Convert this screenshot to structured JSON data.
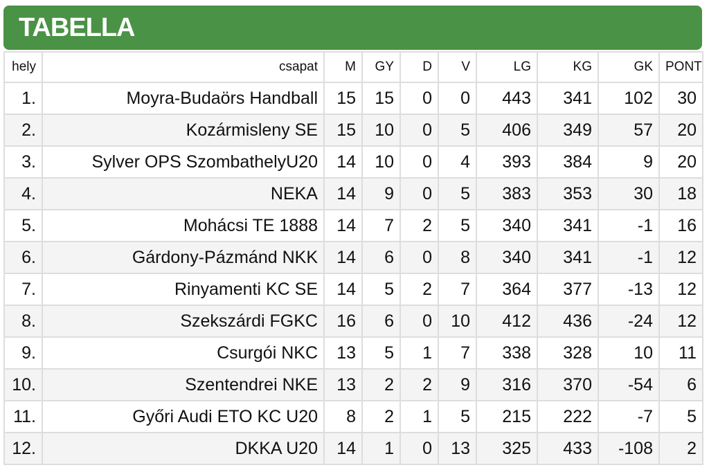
{
  "title": "TABELLA",
  "headers": {
    "hely": "hely",
    "csapat": "csapat",
    "m": "M",
    "gy": "GY",
    "d": "D",
    "v": "V",
    "lg": "LG",
    "kg": "KG",
    "gk": "GK",
    "pont": "PONT"
  },
  "rows": [
    {
      "hely": "1.",
      "csapat": "Moyra-Budaörs Handball",
      "m": "15",
      "gy": "15",
      "d": "0",
      "v": "0",
      "lg": "443",
      "kg": "341",
      "gk": "102",
      "pont": "30"
    },
    {
      "hely": "2.",
      "csapat": "Kozármisleny SE",
      "m": "15",
      "gy": "10",
      "d": "0",
      "v": "5",
      "lg": "406",
      "kg": "349",
      "gk": "57",
      "pont": "20"
    },
    {
      "hely": "3.",
      "csapat": "Sylver OPS SzombathelyU20",
      "m": "14",
      "gy": "10",
      "d": "0",
      "v": "4",
      "lg": "393",
      "kg": "384",
      "gk": "9",
      "pont": "20"
    },
    {
      "hely": "4.",
      "csapat": "NEKA",
      "m": "14",
      "gy": "9",
      "d": "0",
      "v": "5",
      "lg": "383",
      "kg": "353",
      "gk": "30",
      "pont": "18"
    },
    {
      "hely": "5.",
      "csapat": "Mohácsi TE 1888",
      "m": "14",
      "gy": "7",
      "d": "2",
      "v": "5",
      "lg": "340",
      "kg": "341",
      "gk": "-1",
      "pont": "16"
    },
    {
      "hely": "6.",
      "csapat": "Gárdony-Pázmánd NKK",
      "m": "14",
      "gy": "6",
      "d": "0",
      "v": "8",
      "lg": "340",
      "kg": "341",
      "gk": "-1",
      "pont": "12"
    },
    {
      "hely": "7.",
      "csapat": "Rinyamenti KC SE",
      "m": "14",
      "gy": "5",
      "d": "2",
      "v": "7",
      "lg": "364",
      "kg": "377",
      "gk": "-13",
      "pont": "12"
    },
    {
      "hely": "8.",
      "csapat": "Szekszárdi FGKC",
      "m": "16",
      "gy": "6",
      "d": "0",
      "v": "10",
      "lg": "412",
      "kg": "436",
      "gk": "-24",
      "pont": "12"
    },
    {
      "hely": "9.",
      "csapat": "Csurgói NKC",
      "m": "13",
      "gy": "5",
      "d": "1",
      "v": "7",
      "lg": "338",
      "kg": "328",
      "gk": "10",
      "pont": "11"
    },
    {
      "hely": "10.",
      "csapat": "Szentendrei NKE",
      "m": "13",
      "gy": "2",
      "d": "2",
      "v": "9",
      "lg": "316",
      "kg": "370",
      "gk": "-54",
      "pont": "6"
    },
    {
      "hely": "11.",
      "csapat": "Győri Audi ETO KC U20",
      "m": "8",
      "gy": "2",
      "d": "1",
      "v": "5",
      "lg": "215",
      "kg": "222",
      "gk": "-7",
      "pont": "5"
    },
    {
      "hely": "12.",
      "csapat": "DKKA U20",
      "m": "14",
      "gy": "1",
      "d": "0",
      "v": "13",
      "lg": "325",
      "kg": "433",
      "gk": "-108",
      "pont": "2"
    }
  ],
  "colors": {
    "banner": "#4a9245",
    "title_text": "#ffffff"
  }
}
